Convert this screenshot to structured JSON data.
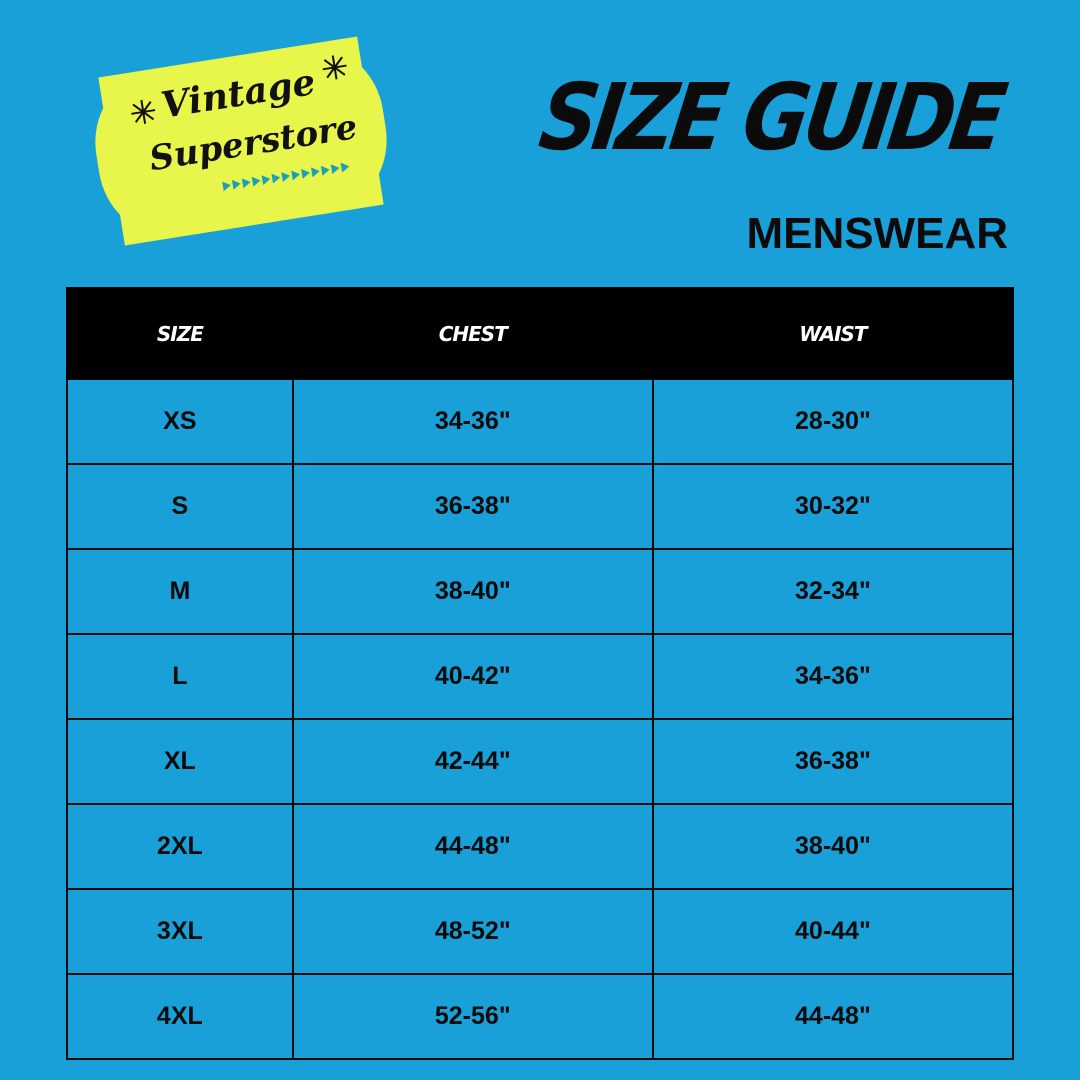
{
  "logo": {
    "line1": "Vintage",
    "line2": "Superstore",
    "colors": {
      "plate": "#e8f54a",
      "accent": "#1aa0b8"
    }
  },
  "header": {
    "title": "SIZE GUIDE",
    "subtitle": "MENSWEAR"
  },
  "colors": {
    "background": "#1aa0d8",
    "header_bg": "#000000",
    "text": "#0b0b0b"
  },
  "table": {
    "columns": [
      "SIZE",
      "CHEST",
      "WAIST"
    ],
    "rows": [
      [
        "XS",
        "34-36\"",
        "28-30\""
      ],
      [
        "S",
        "36-38\"",
        "30-32\""
      ],
      [
        "M",
        "38-40\"",
        "32-34\""
      ],
      [
        "L",
        "40-42\"",
        "34-36\""
      ],
      [
        "XL",
        "42-44\"",
        "36-38\""
      ],
      [
        "2XL",
        "44-48\"",
        "38-40\""
      ],
      [
        "3XL",
        "48-52\"",
        "40-44\""
      ],
      [
        "4XL",
        "52-56\"",
        "44-48\""
      ]
    ]
  }
}
